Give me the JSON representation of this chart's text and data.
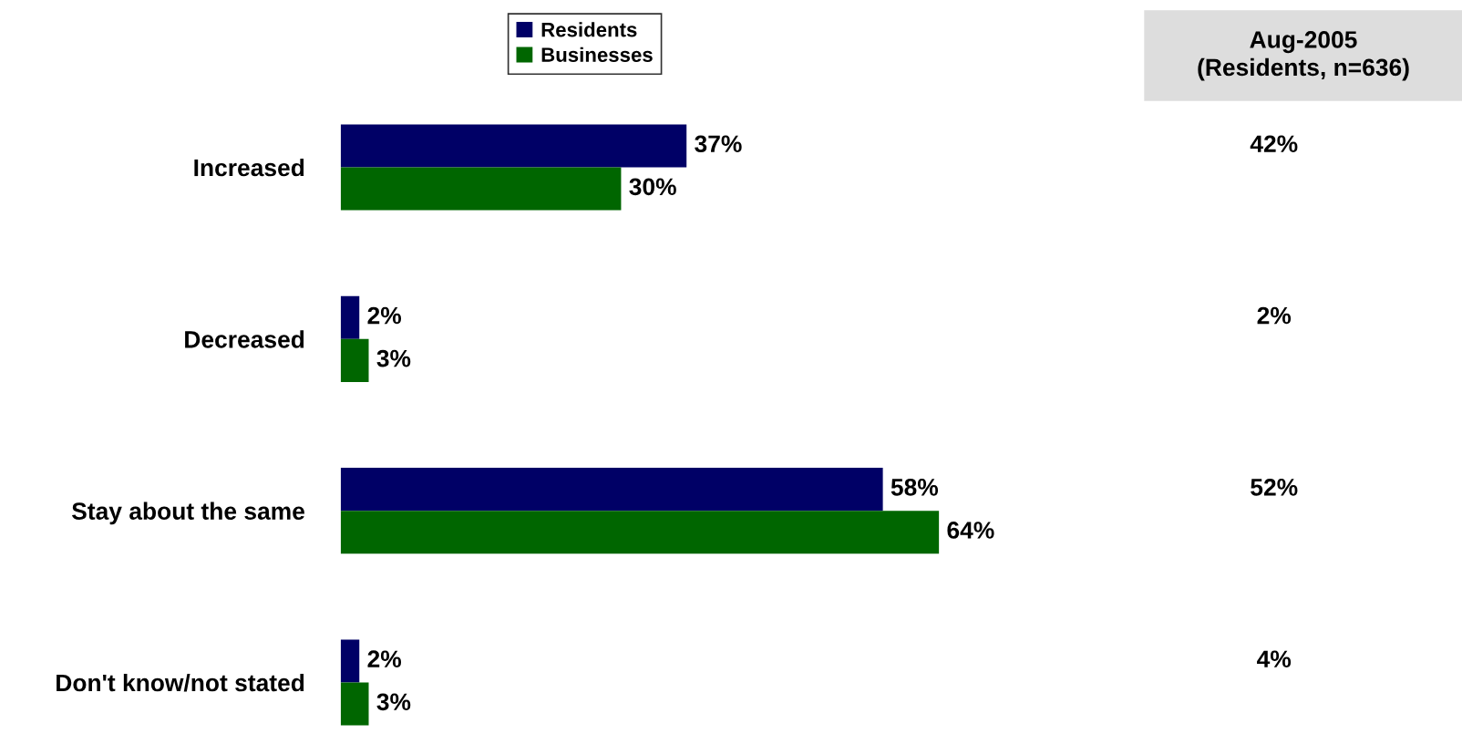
{
  "chart_data": {
    "type": "bar",
    "orientation": "horizontal",
    "categories": [
      "Increased",
      "Decreased",
      "Stay about the same",
      "Don't know/not stated"
    ],
    "series": [
      {
        "name": "Residents",
        "color": "#000066",
        "values": [
          37,
          2,
          58,
          2
        ],
        "value_labels": [
          "37%",
          "2%",
          "58%",
          "2%"
        ]
      },
      {
        "name": "Businesses",
        "color": "#006600",
        "values": [
          30,
          3,
          64,
          3
        ],
        "value_labels": [
          "30%",
          "3%",
          "64%",
          "3%"
        ]
      }
    ],
    "legend": "top",
    "grid": false,
    "annotations": [
      "Aug-2005\n(Residents, n=636)",
      "42%",
      "2%",
      "52%",
      "4%"
    ]
  }
}
